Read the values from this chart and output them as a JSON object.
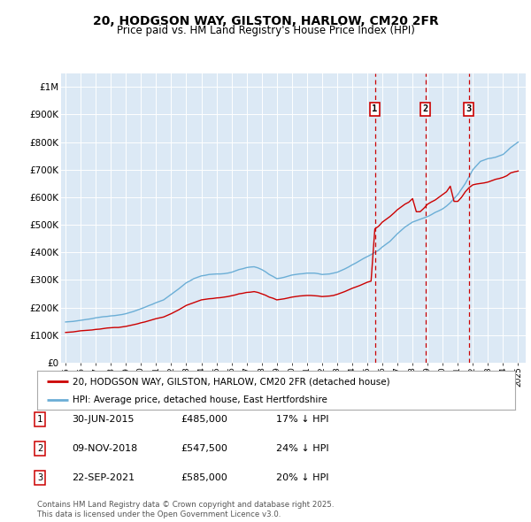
{
  "title": "20, HODGSON WAY, GILSTON, HARLOW, CM20 2FR",
  "subtitle": "Price paid vs. HM Land Registry's House Price Index (HPI)",
  "bg_color": "#dce9f5",
  "hpi_color": "#6baed6",
  "price_color": "#cc0000",
  "vline_color": "#cc0000",
  "ylim": [
    0,
    1050000
  ],
  "yticks": [
    0,
    100000,
    200000,
    300000,
    400000,
    500000,
    600000,
    700000,
    800000,
    900000,
    1000000
  ],
  "ytick_labels": [
    "£0",
    "£100K",
    "£200K",
    "£300K",
    "£400K",
    "£500K",
    "£600K",
    "£700K",
    "£800K",
    "£900K",
    "£1M"
  ],
  "sales": [
    {
      "date": 2015.5,
      "price": 485000,
      "label": "1"
    },
    {
      "date": 2018.85,
      "price": 547500,
      "label": "2"
    },
    {
      "date": 2021.72,
      "price": 585000,
      "label": "3"
    }
  ],
  "legend_label_price": "20, HODGSON WAY, GILSTON, HARLOW, CM20 2FR (detached house)",
  "legend_label_hpi": "HPI: Average price, detached house, East Hertfordshire",
  "table_rows": [
    {
      "num": "1",
      "date": "30-JUN-2015",
      "price": "£485,000",
      "pct": "17% ↓ HPI"
    },
    {
      "num": "2",
      "date": "09-NOV-2018",
      "price": "£547,500",
      "pct": "24% ↓ HPI"
    },
    {
      "num": "3",
      "date": "22-SEP-2021",
      "price": "£585,000",
      "pct": "20% ↓ HPI"
    }
  ],
  "footer": "Contains HM Land Registry data © Crown copyright and database right 2025.\nThis data is licensed under the Open Government Licence v3.0.",
  "hpi_x": [
    1995,
    1995.25,
    1995.5,
    1995.75,
    1996,
    1996.25,
    1996.5,
    1996.75,
    1997,
    1997.25,
    1997.5,
    1997.75,
    1998,
    1998.25,
    1998.5,
    1998.75,
    1999,
    1999.25,
    1999.5,
    1999.75,
    2000,
    2000.25,
    2000.5,
    2000.75,
    2001,
    2001.25,
    2001.5,
    2001.75,
    2002,
    2002.25,
    2002.5,
    2002.75,
    2003,
    2003.25,
    2003.5,
    2003.75,
    2004,
    2004.25,
    2004.5,
    2004.75,
    2005,
    2005.25,
    2005.5,
    2005.75,
    2006,
    2006.25,
    2006.5,
    2006.75,
    2007,
    2007.25,
    2007.5,
    2007.75,
    2008,
    2008.25,
    2008.5,
    2008.75,
    2009,
    2009.25,
    2009.5,
    2009.75,
    2010,
    2010.25,
    2010.5,
    2010.75,
    2011,
    2011.25,
    2011.5,
    2011.75,
    2012,
    2012.25,
    2012.5,
    2012.75,
    2013,
    2013.25,
    2013.5,
    2013.75,
    2014,
    2014.25,
    2014.5,
    2014.75,
    2015,
    2015.25,
    2015.5,
    2015.75,
    2016,
    2016.25,
    2016.5,
    2016.75,
    2017,
    2017.25,
    2017.5,
    2017.75,
    2018,
    2018.25,
    2018.5,
    2018.75,
    2019,
    2019.25,
    2019.5,
    2019.75,
    2020,
    2020.25,
    2020.5,
    2020.75,
    2021,
    2021.25,
    2021.5,
    2021.75,
    2022,
    2022.25,
    2022.5,
    2022.75,
    2023,
    2023.25,
    2023.5,
    2023.75,
    2024,
    2024.25,
    2024.5,
    2024.75,
    2025
  ],
  "hpi_y": [
    148000,
    149000,
    150000,
    152000,
    154000,
    156000,
    158000,
    160000,
    163000,
    165000,
    167000,
    168000,
    170000,
    171000,
    173000,
    175000,
    178000,
    182000,
    186000,
    191000,
    196000,
    201000,
    207000,
    212000,
    218000,
    223000,
    228000,
    238000,
    248000,
    258000,
    268000,
    279000,
    290000,
    297000,
    305000,
    310000,
    315000,
    317000,
    320000,
    321000,
    322000,
    322000,
    323000,
    325000,
    328000,
    333000,
    338000,
    341000,
    345000,
    347000,
    348000,
    344000,
    338000,
    330000,
    320000,
    313000,
    305000,
    307000,
    310000,
    314000,
    318000,
    320000,
    322000,
    323000,
    325000,
    325000,
    325000,
    323000,
    320000,
    321000,
    322000,
    325000,
    328000,
    334000,
    340000,
    347000,
    355000,
    362000,
    370000,
    378000,
    385000,
    392000,
    400000,
    408000,
    420000,
    430000,
    440000,
    454000,
    468000,
    480000,
    492000,
    501000,
    510000,
    515000,
    520000,
    525000,
    530000,
    537000,
    545000,
    551000,
    558000,
    568000,
    580000,
    595000,
    610000,
    630000,
    650000,
    675000,
    700000,
    715000,
    730000,
    735000,
    740000,
    742000,
    745000,
    750000,
    755000,
    767000,
    780000,
    790000,
    800000
  ],
  "price_x": [
    1995,
    1995.25,
    1995.5,
    1995.75,
    1996,
    1996.25,
    1996.5,
    1996.75,
    1997,
    1997.25,
    1997.5,
    1997.75,
    1998,
    1998.25,
    1998.5,
    1998.75,
    1999,
    1999.25,
    1999.5,
    1999.75,
    2000,
    2000.25,
    2000.5,
    2000.75,
    2001,
    2001.25,
    2001.5,
    2001.75,
    2002,
    2002.25,
    2002.5,
    2002.75,
    2003,
    2003.25,
    2003.5,
    2003.75,
    2004,
    2004.25,
    2004.5,
    2004.75,
    2005,
    2005.25,
    2005.5,
    2005.75,
    2006,
    2006.25,
    2006.5,
    2006.75,
    2007,
    2007.25,
    2007.5,
    2007.75,
    2008,
    2008.25,
    2008.5,
    2008.75,
    2009,
    2009.25,
    2009.5,
    2009.75,
    2010,
    2010.25,
    2010.5,
    2010.75,
    2011,
    2011.25,
    2011.5,
    2011.75,
    2012,
    2012.25,
    2012.5,
    2012.75,
    2013,
    2013.25,
    2013.5,
    2013.75,
    2014,
    2014.25,
    2014.5,
    2014.75,
    2015,
    2015.25,
    2015.5,
    2015.75,
    2016,
    2016.25,
    2016.5,
    2016.75,
    2017,
    2017.25,
    2017.5,
    2017.75,
    2018,
    2018.25,
    2018.5,
    2018.75,
    2019,
    2019.25,
    2019.5,
    2019.75,
    2020,
    2020.25,
    2020.5,
    2020.75,
    2021,
    2021.25,
    2021.5,
    2021.75,
    2022,
    2022.25,
    2022.5,
    2022.75,
    2023,
    2023.25,
    2023.5,
    2023.75,
    2024,
    2024.25,
    2024.5,
    2024.75,
    2025
  ],
  "price_y": [
    110000,
    111000,
    112000,
    114000,
    116000,
    117000,
    118000,
    119000,
    121000,
    122000,
    124000,
    126000,
    127000,
    128000,
    128000,
    130000,
    132000,
    135000,
    138000,
    141000,
    145000,
    148000,
    152000,
    156000,
    160000,
    163000,
    166000,
    172000,
    178000,
    185000,
    192000,
    200000,
    208000,
    213000,
    218000,
    223000,
    228000,
    230000,
    232000,
    233000,
    235000,
    236000,
    238000,
    240000,
    243000,
    246000,
    250000,
    252000,
    255000,
    256000,
    258000,
    255000,
    250000,
    245000,
    238000,
    234000,
    228000,
    230000,
    232000,
    235000,
    238000,
    240000,
    242000,
    243000,
    244000,
    244000,
    243000,
    242000,
    240000,
    241000,
    242000,
    244000,
    248000,
    253000,
    258000,
    264000,
    270000,
    275000,
    280000,
    286000,
    292000,
    296000,
    485000,
    495000,
    510000,
    520000,
    530000,
    542000,
    555000,
    565000,
    575000,
    582000,
    595000,
    547500,
    547500,
    560000,
    575000,
    583000,
    590000,
    600000,
    610000,
    620000,
    640000,
    585000,
    585000,
    600000,
    620000,
    635000,
    645000,
    648000,
    650000,
    652000,
    655000,
    660000,
    665000,
    668000,
    672000,
    678000,
    688000,
    692000,
    695000
  ]
}
